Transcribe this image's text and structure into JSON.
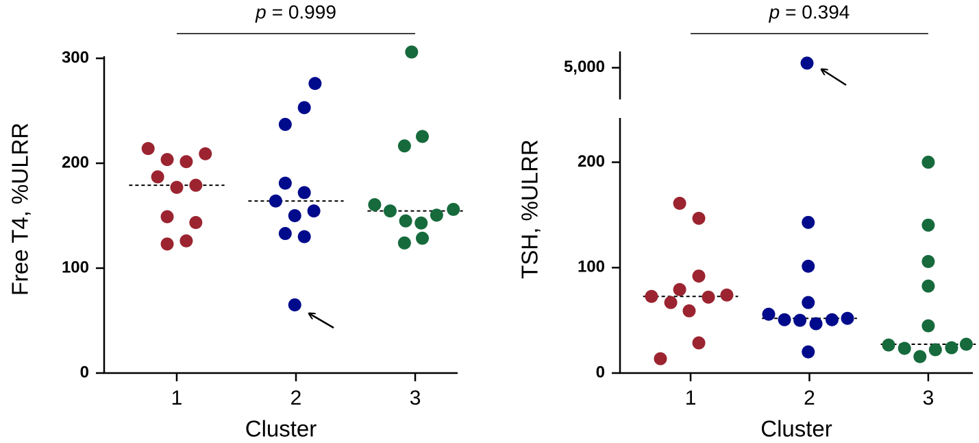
{
  "chart_data": [
    {
      "type": "strip",
      "ylabel": "Free T4, %ULRR",
      "xlabel": "Cluster",
      "annotation": {
        "symbol": "p",
        "text": "= 0.999"
      },
      "xticks": [
        1,
        2,
        3
      ],
      "xlim": [
        0.391,
        3.356
      ],
      "ylim": [
        0,
        302
      ],
      "yticks": [
        0,
        100,
        200,
        300
      ],
      "series": [
        {
          "color": "#9b2430",
          "median": 179,
          "x": [
            0.76,
            0.92,
            1.08,
            1.24,
            0.84,
            1.0,
            1.16,
            0.92,
            1.16,
            0.92,
            1.08
          ],
          "values": [
            214,
            203.5,
            201.5,
            209,
            187,
            177,
            179,
            149,
            143.5,
            123,
            126
          ]
        },
        {
          "color": "#000b8c",
          "median": 164,
          "x": [
            2.16,
            2.07,
            1.91,
            1.91,
            2.07,
            1.83,
            1.99,
            2.15,
            1.91,
            2.07,
            1.99
          ],
          "values": [
            276,
            253,
            237,
            181,
            172,
            164,
            150,
            154.5,
            133,
            130,
            65
          ]
        },
        {
          "color": "#166a3c",
          "median": 154.5,
          "x": [
            2.97,
            3.06,
            2.91,
            2.66,
            2.79,
            2.92,
            3.05,
            3.18,
            3.32,
            2.91,
            3.06
          ],
          "values": [
            306,
            225.5,
            216.5,
            160.5,
            154.5,
            145,
            143,
            150.5,
            156,
            124,
            128.5
          ]
        }
      ]
    },
    {
      "type": "strip",
      "ylabel": "TSH, %ULRR",
      "xlabel": "Cluster",
      "annotation": {
        "symbol": "p",
        "text": "= 0.394"
      },
      "xticks": [
        1,
        2,
        3
      ],
      "xlim": [
        0.406,
        3.375
      ],
      "ylim": [
        0,
        242
      ],
      "yticks": [
        0,
        100,
        200
      ],
      "y_break": {
        "ylim": [
          4650,
          5180
        ],
        "yticks": [
          {
            "value": 5000,
            "label": "5,000"
          }
        ]
      },
      "series": [
        {
          "color": "#9b2430",
          "median": 72.7,
          "x": [
            0.908,
            1.069,
            1.069,
            0.671,
            0.833,
            0.908,
            0.988,
            1.15,
            1.305,
            1.069,
            0.746
          ],
          "values": [
            161,
            146.8,
            92,
            72.7,
            66.9,
            79.2,
            59,
            72,
            74,
            28.6,
            13.6
          ]
        },
        {
          "color": "#000b8c",
          "median": 51.9,
          "x": [
            1.98,
            1.99,
            1.99,
            1.99,
            1.657,
            1.79,
            1.92,
            2.055,
            2.19,
            2.32,
            1.99
          ],
          "values": [
            5051,
            142.9,
            101.3,
            66.9,
            55.8,
            50.6,
            50,
            46.8,
            50.6,
            51.9,
            20.1
          ]
        },
        {
          "color": "#166a3c",
          "median": 27.3,
          "x": [
            3.0,
            3.0,
            3.0,
            3.0,
            3.0,
            2.666,
            2.8,
            2.93,
            3.06,
            3.196,
            3.32
          ],
          "values": [
            200,
            140.3,
            105.8,
            82.5,
            44.8,
            26.6,
            23.4,
            15.6,
            22.1,
            24,
            27.3
          ]
        }
      ]
    }
  ]
}
